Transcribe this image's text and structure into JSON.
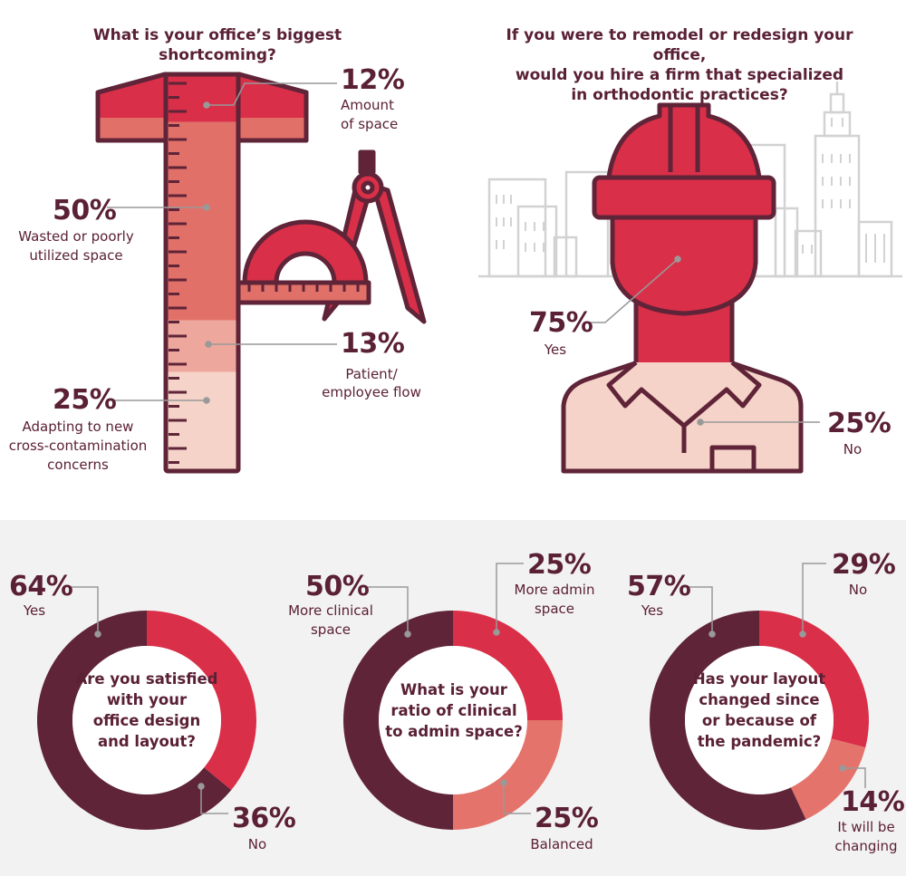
{
  "colors": {
    "maroon": "#5f2438",
    "red": "#d92f48",
    "salmon": "#e4736b",
    "pink": "#eea79d",
    "blush": "#f5d3c9",
    "text": "#5a2035",
    "building": "#d2d2d2",
    "band": "#f3f2f2"
  },
  "icons": [
    "t-square-ruler-icon",
    "protractor-icon",
    "compass-icon",
    "hard-hat-worker-icon",
    "city-skyline-icon"
  ],
  "chart_data": [
    {
      "type": "bar",
      "title": "What is your office’s biggest shortcoming?",
      "stacked": true,
      "segments": [
        {
          "pct": "12%",
          "value": 12,
          "label_lines": [
            "Amount",
            "of space"
          ],
          "color": "#d92f48"
        },
        {
          "pct": "50%",
          "value": 50,
          "label_lines": [
            "Wasted or poorly",
            "utilized space"
          ],
          "color": "#e07068"
        },
        {
          "pct": "13%",
          "value": 13,
          "label_lines": [
            "Patient/",
            "employee flow"
          ],
          "color": "#eea79d"
        },
        {
          "pct": "25%",
          "value": 25,
          "label_lines": [
            "Adapting to new",
            "cross-contamination",
            "concerns"
          ],
          "color": "#f5d3c9"
        }
      ]
    },
    {
      "type": "pie",
      "title_lines": [
        "If you were to remodel or redesign your office,",
        "would you hire a firm that specialized",
        "in orthodontic practices?"
      ],
      "slices": [
        {
          "pct": "75%",
          "value": 75,
          "label": "Yes",
          "color": "#d92f48"
        },
        {
          "pct": "25%",
          "value": 25,
          "label": "No",
          "color": "#f5d3c9"
        }
      ]
    },
    {
      "type": "pie",
      "title_lines": [
        "Are you satisfied",
        "with your",
        "office design",
        "and layout?"
      ],
      "slices": [
        {
          "pct": "64%",
          "value": 64,
          "label_lines": [
            "Yes"
          ],
          "color": "#5f2438"
        },
        {
          "pct": "36%",
          "value": 36,
          "label_lines": [
            "No"
          ],
          "color": "#d92f48"
        }
      ]
    },
    {
      "type": "pie",
      "title_lines": [
        "What is your",
        "ratio of clinical",
        "to admin space?"
      ],
      "slices": [
        {
          "pct": "50%",
          "value": 50,
          "label_lines": [
            "More clinical",
            "space"
          ],
          "color": "#5f2438"
        },
        {
          "pct": "25%",
          "value": 25,
          "label_lines": [
            "More admin",
            "space"
          ],
          "color": "#d92f48"
        },
        {
          "pct": "25%",
          "value": 25,
          "label_lines": [
            "Balanced"
          ],
          "color": "#e4736b"
        }
      ]
    },
    {
      "type": "pie",
      "title_lines": [
        "Has your layout",
        "changed since",
        "or because of",
        "the pandemic?"
      ],
      "slices": [
        {
          "pct": "57%",
          "value": 57,
          "label_lines": [
            "Yes"
          ],
          "color": "#5f2438"
        },
        {
          "pct": "29%",
          "value": 29,
          "label_lines": [
            "No"
          ],
          "color": "#d92f48"
        },
        {
          "pct": "14%",
          "value": 14,
          "label_lines": [
            "It will be",
            "changing"
          ],
          "color": "#e4736b"
        }
      ]
    }
  ]
}
